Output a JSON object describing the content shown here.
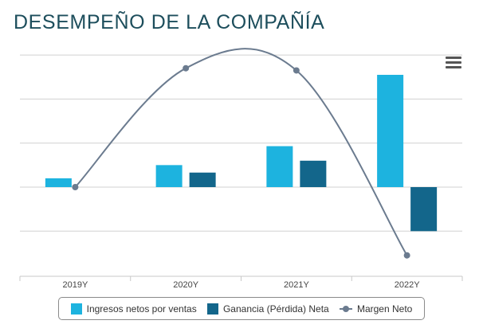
{
  "title": "DESEMPEÑO DE LA COMPAÑÍA",
  "menu_icon": "hamburger-menu-icon",
  "chart_data": {
    "type": "bar",
    "categories": [
      "2019Y",
      "2020Y",
      "2021Y",
      "2022Y"
    ],
    "series": [
      {
        "name": "Ingresos netos por ventas",
        "type": "bar",
        "color": "#1db3df",
        "values": [
          0.2,
          0.5,
          0.93,
          2.55
        ]
      },
      {
        "name": "Ganancia (Pérdida) Neta",
        "type": "bar",
        "color": "#13668b",
        "values": [
          0,
          0.33,
          0.6,
          -1.0
        ]
      },
      {
        "name": "Margen Neto",
        "type": "line",
        "color": "#6b7b8f",
        "values": [
          0,
          2.7,
          2.65,
          -1.55
        ]
      }
    ],
    "ylim": [
      -2,
      3
    ],
    "grid": true,
    "legend": "bottom"
  }
}
